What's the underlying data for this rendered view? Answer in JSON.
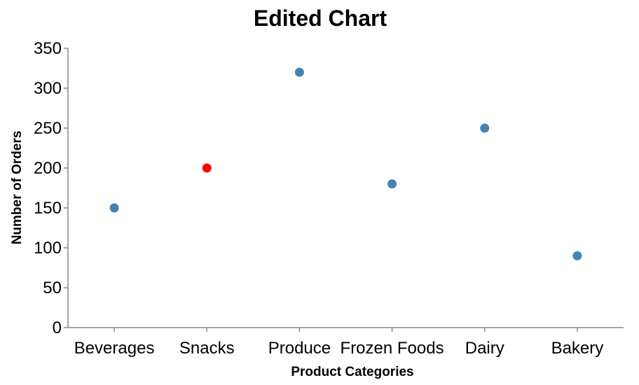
{
  "chart_data": {
    "type": "scatter",
    "title": "Edited Chart",
    "xlabel": "Product Categories",
    "ylabel": "Number of Orders",
    "categories": [
      "Beverages",
      "Snacks",
      "Produce",
      "Frozen Foods",
      "Dairy",
      "Bakery"
    ],
    "values": [
      150,
      200,
      320,
      180,
      250,
      90
    ],
    "ylim": [
      0,
      350
    ],
    "yticks": [
      0,
      50,
      100,
      150,
      200,
      250,
      300,
      350
    ],
    "grid": false,
    "colors": {
      "default": "#4682b4",
      "highlight": "#ff0000"
    },
    "highlighted_category": "Snacks"
  }
}
